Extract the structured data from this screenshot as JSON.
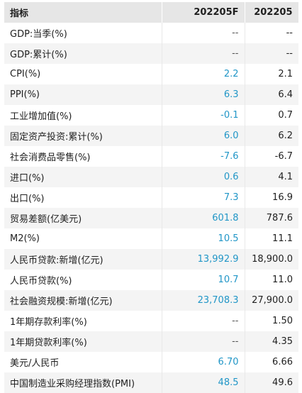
{
  "table": {
    "headers": [
      "指标",
      "202205F",
      "202205"
    ],
    "rows": [
      {
        "name": "GDP:当季(%)",
        "forecast": "--",
        "actual": "--"
      },
      {
        "name": "GDP:累计(%)",
        "forecast": "--",
        "actual": "--"
      },
      {
        "name": "CPI(%)",
        "forecast": "2.2",
        "actual": "2.1"
      },
      {
        "name": "PPI(%)",
        "forecast": "6.3",
        "actual": "6.4"
      },
      {
        "name": "工业增加值(%)",
        "forecast": "-0.1",
        "actual": "0.7"
      },
      {
        "name": "固定资产投资:累计(%)",
        "forecast": "6.0",
        "actual": "6.2"
      },
      {
        "name": "社会消费品零售(%)",
        "forecast": "-7.6",
        "actual": "-6.7"
      },
      {
        "name": "进口(%)",
        "forecast": "0.6",
        "actual": "4.1"
      },
      {
        "name": "出口(%)",
        "forecast": "7.3",
        "actual": "16.9"
      },
      {
        "name": "贸易差额(亿美元)",
        "forecast": "601.8",
        "actual": "787.6"
      },
      {
        "name": "M2(%)",
        "forecast": "10.5",
        "actual": "11.1"
      },
      {
        "name": "人民币贷款:新增(亿元)",
        "forecast": "13,992.9",
        "actual": "18,900.0"
      },
      {
        "name": "人民币贷款(%)",
        "forecast": "10.7",
        "actual": "11.0"
      },
      {
        "name": "社会融资规模:新增(亿元)",
        "forecast": "23,708.3",
        "actual": "27,900.0"
      },
      {
        "name": "1年期存款利率(%)",
        "forecast": "--",
        "actual": "1.50"
      },
      {
        "name": "1年期贷款利率(%)",
        "forecast": "--",
        "actual": "4.35"
      },
      {
        "name": "美元/人民币",
        "forecast": "6.70",
        "actual": "6.66"
      },
      {
        "name": "中国制造业采购经理指数(PMI)",
        "forecast": "48.5",
        "actual": "49.6"
      }
    ]
  },
  "colors": {
    "forecast_value": "#2196c7",
    "header_bg": "#e6e6e6",
    "stripe_bg": "#f4f4f4"
  }
}
